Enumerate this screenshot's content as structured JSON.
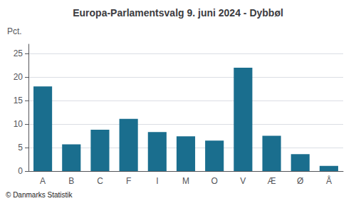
{
  "chart_data": {
    "type": "bar",
    "title": "Europa-Parlamentsvalg 9. juni 2024 - Dybbøl",
    "ylabel": "Pct.",
    "footer": "© Danmarks Statistik",
    "categories": [
      "A",
      "B",
      "C",
      "F",
      "I",
      "M",
      "O",
      "V",
      "Æ",
      "Ø",
      "Å"
    ],
    "values": [
      18.0,
      5.7,
      8.8,
      11.1,
      8.3,
      7.4,
      6.5,
      22.0,
      7.5,
      3.6,
      1.1
    ],
    "color": "#1a6e8e",
    "ylim": [
      0,
      27
    ],
    "yticks": [
      0,
      5,
      10,
      15,
      20,
      25
    ],
    "grid": true
  }
}
